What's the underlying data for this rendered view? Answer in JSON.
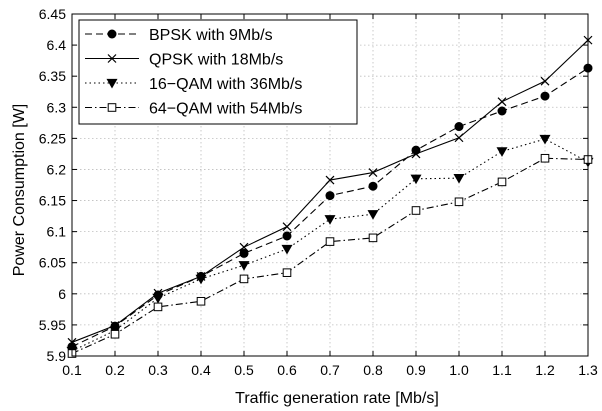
{
  "chart_data": {
    "type": "line",
    "xlabel": "Traffic generation rate [Mb/s]",
    "ylabel": "Power Consumption [W]",
    "xlim": [
      0.1,
      1.3
    ],
    "ylim": [
      5.9,
      6.45
    ],
    "xticks": [
      "0.1",
      "0.2",
      "0.3",
      "0.4",
      "0.5",
      "0.6",
      "0.7",
      "0.8",
      "0.9",
      "1.0",
      "1.1",
      "1.2",
      "1.3"
    ],
    "yticks": [
      "5.9",
      "5.95",
      "6",
      "6.05",
      "6.1",
      "6.15",
      "6.2",
      "6.25",
      "6.3",
      "6.35",
      "6.4",
      "6.45"
    ],
    "grid": true,
    "legend_position": "top-left",
    "x": [
      0.1,
      0.2,
      0.3,
      0.4,
      0.5,
      0.6,
      0.7,
      0.8,
      0.9,
      1.0,
      1.1,
      1.2,
      1.3
    ],
    "series": [
      {
        "name": "BPSK with 9Mb/s",
        "marker": "filled-circle",
        "line": "dashed",
        "values": [
          5.915,
          5.948,
          5.998,
          6.028,
          6.065,
          6.093,
          6.158,
          6.173,
          6.231,
          6.269,
          6.294,
          6.318,
          6.363
        ]
      },
      {
        "name": "QPSK with 18Mb/s",
        "marker": "x",
        "line": "solid",
        "values": [
          5.922,
          5.949,
          6.001,
          6.028,
          6.075,
          6.108,
          6.183,
          6.195,
          6.225,
          6.251,
          6.309,
          6.342,
          6.408
        ]
      },
      {
        "name": "16−QAM with 36Mb/s",
        "marker": "filled-triangle-down",
        "line": "dotted",
        "values": [
          5.908,
          5.941,
          5.993,
          6.024,
          6.046,
          6.072,
          6.12,
          6.128,
          6.185,
          6.186,
          6.229,
          6.249,
          6.212
        ]
      },
      {
        "name": "64−QAM with 54Mb/s",
        "marker": "open-square",
        "line": "dash-dot",
        "values": [
          5.904,
          5.935,
          5.979,
          5.988,
          6.024,
          6.034,
          6.084,
          6.09,
          6.134,
          6.148,
          6.18,
          6.218,
          6.216
        ]
      }
    ]
  }
}
